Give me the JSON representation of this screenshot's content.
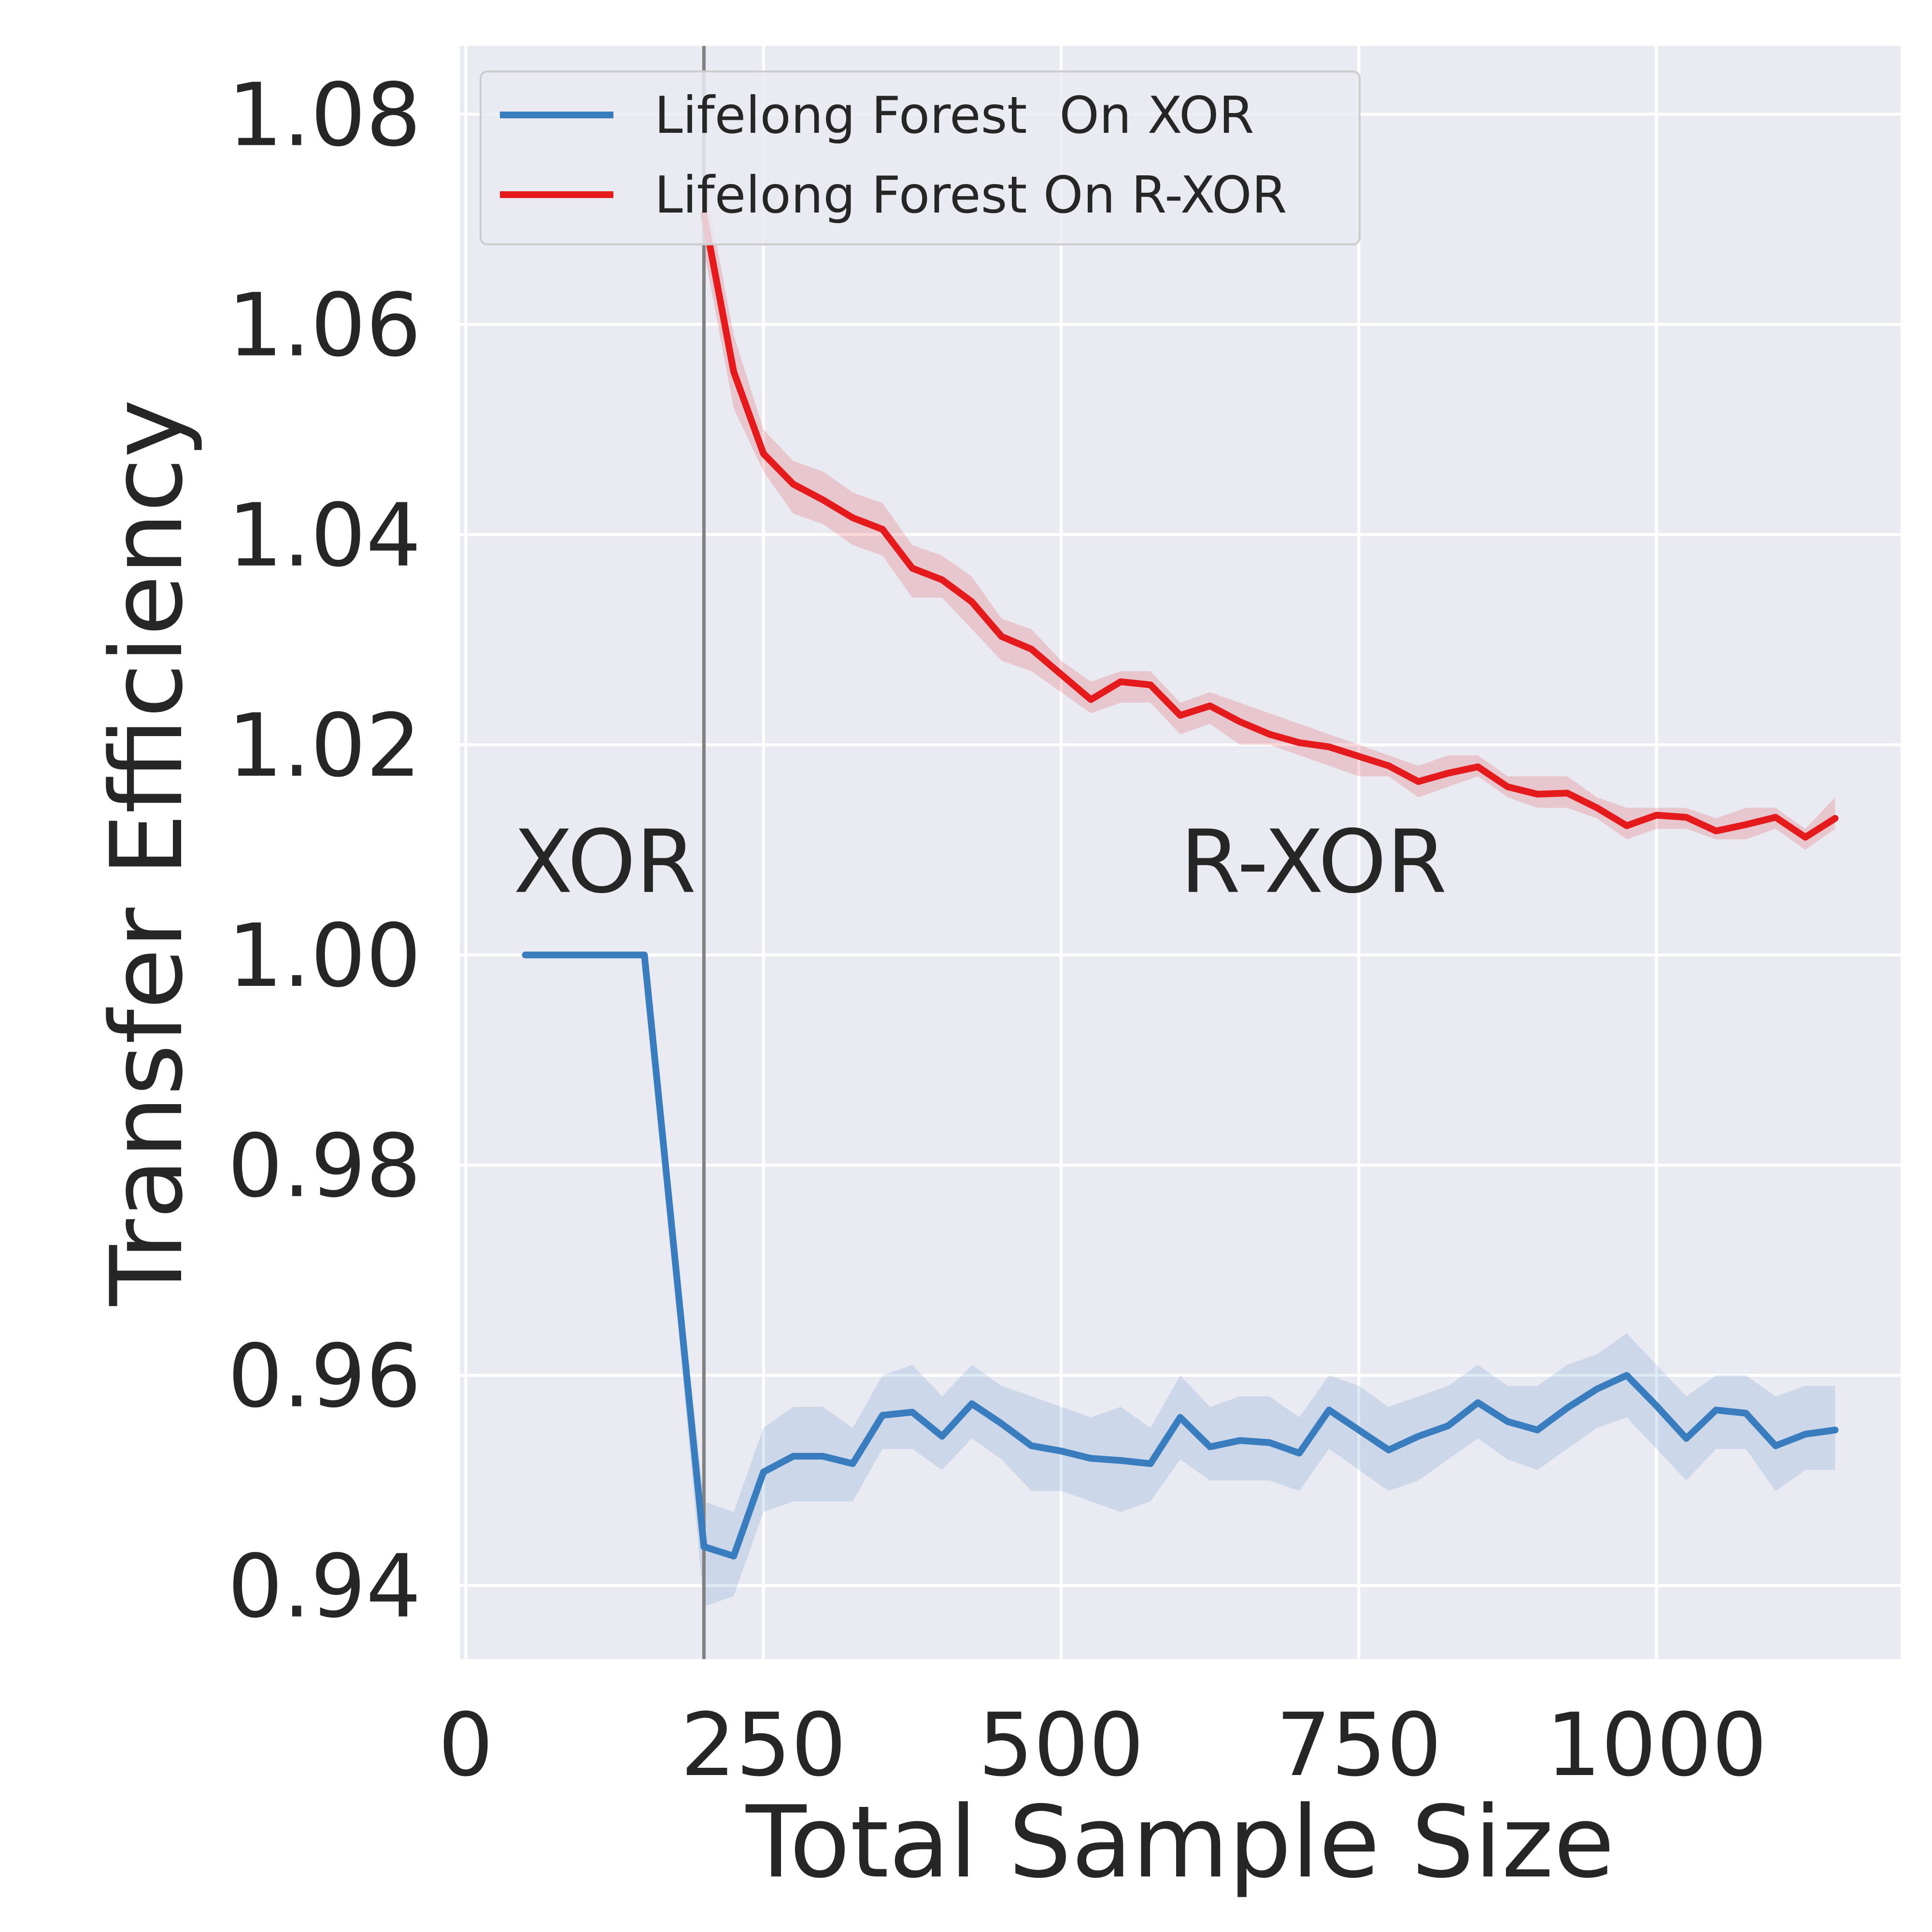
{
  "chart_data": {
    "type": "line",
    "title": "",
    "xlabel": "Total Sample Size",
    "ylabel": "Transfer Efficiency",
    "xlim": [
      -5,
      1205
    ],
    "ylim": [
      0.933,
      1.0865
    ],
    "xticks": [
      0,
      250,
      500,
      750,
      1000
    ],
    "xtick_labels": [
      "0",
      "250",
      "500",
      "750",
      "1000"
    ],
    "yticks": [
      0.94,
      0.96,
      0.98,
      1.0,
      1.02,
      1.04,
      1.06,
      1.08
    ],
    "ytick_labels": [
      "0.94",
      "0.96",
      "0.98",
      "1.00",
      "1.02",
      "1.04",
      "1.06",
      "1.08"
    ],
    "grid": true,
    "legend_position": "top-left",
    "background_color": "#EAEAF2",
    "vertical_line": {
      "x": 200,
      "color": "#808080"
    },
    "annotations": [
      {
        "text": "XOR",
        "x": 40,
        "y": 1.006
      },
      {
        "text": "R-XOR",
        "x": 600,
        "y": 1.006
      }
    ],
    "series": [
      {
        "name": "Lifelong Forest  On XOR",
        "color": "#3A7DBF",
        "x": [
          50,
          75,
          100,
          125,
          150,
          200,
          225,
          250,
          275,
          300,
          325,
          350,
          375,
          400,
          425,
          450,
          475,
          500,
          525,
          550,
          575,
          600,
          625,
          650,
          675,
          700,
          725,
          750,
          775,
          800,
          825,
          850,
          875,
          900,
          925,
          950,
          975,
          1000,
          1025,
          1050,
          1075,
          1100,
          1125,
          1150
        ],
        "y": [
          1.0,
          1.0,
          1.0,
          1.0,
          1.0,
          0.9437,
          0.9428,
          0.9508,
          0.9523,
          0.9523,
          0.9516,
          0.9562,
          0.9565,
          0.9542,
          0.9573,
          0.9554,
          0.9533,
          0.9528,
          0.9521,
          0.9519,
          0.9516,
          0.956,
          0.9532,
          0.9538,
          0.9536,
          0.9526,
          0.9567,
          0.9548,
          0.9529,
          0.9542,
          0.9552,
          0.9574,
          0.9556,
          0.9548,
          0.9569,
          0.9587,
          0.96,
          0.9571,
          0.954,
          0.9567,
          0.9564,
          0.9533,
          0.9544,
          0.9548
        ],
        "lower": [
          1.0,
          1.0,
          1.0,
          1.0,
          1.0,
          0.938,
          0.939,
          0.947,
          0.948,
          0.948,
          0.948,
          0.953,
          0.953,
          0.951,
          0.954,
          0.952,
          0.949,
          0.949,
          0.948,
          0.947,
          0.948,
          0.952,
          0.95,
          0.95,
          0.95,
          0.949,
          0.953,
          0.951,
          0.949,
          0.95,
          0.952,
          0.954,
          0.952,
          0.951,
          0.953,
          0.955,
          0.956,
          0.953,
          0.95,
          0.953,
          0.953,
          0.949,
          0.951,
          0.951
        ],
        "upper": [
          1.0,
          1.0,
          1.0,
          1.0,
          1.0,
          0.948,
          0.947,
          0.955,
          0.957,
          0.957,
          0.955,
          0.96,
          0.961,
          0.958,
          0.961,
          0.959,
          0.958,
          0.957,
          0.956,
          0.957,
          0.955,
          0.96,
          0.957,
          0.958,
          0.958,
          0.956,
          0.96,
          0.959,
          0.957,
          0.958,
          0.959,
          0.961,
          0.959,
          0.959,
          0.961,
          0.962,
          0.964,
          0.961,
          0.958,
          0.96,
          0.96,
          0.958,
          0.959,
          0.959
        ]
      },
      {
        "name": "Lifelong Forest On R-XOR",
        "color": "#E41A1C",
        "x": [
          200,
          225,
          250,
          275,
          300,
          325,
          350,
          375,
          400,
          425,
          450,
          475,
          500,
          525,
          550,
          575,
          600,
          625,
          650,
          675,
          700,
          725,
          750,
          775,
          800,
          825,
          850,
          875,
          900,
          925,
          950,
          975,
          1000,
          1025,
          1050,
          1075,
          1100,
          1125,
          1150
        ],
        "y": [
          1.0705,
          1.0555,
          1.0477,
          1.0448,
          1.0433,
          1.0416,
          1.0405,
          1.0368,
          1.0357,
          1.0336,
          1.0303,
          1.0291,
          1.0267,
          1.0243,
          1.026,
          1.0257,
          1.0228,
          1.0237,
          1.0222,
          1.021,
          1.0202,
          1.0198,
          1.0189,
          1.018,
          1.0165,
          1.0173,
          1.0179,
          1.016,
          1.0153,
          1.0154,
          1.014,
          1.0123,
          1.0133,
          1.0131,
          1.0118,
          1.0124,
          1.0131,
          1.0112,
          1.013
        ],
        "lower": [
          1.067,
          1.052,
          1.046,
          1.042,
          1.041,
          1.039,
          1.038,
          1.034,
          1.034,
          1.031,
          1.028,
          1.027,
          1.025,
          1.023,
          1.024,
          1.024,
          1.021,
          1.022,
          1.02,
          1.02,
          1.019,
          1.018,
          1.017,
          1.017,
          1.015,
          1.016,
          1.017,
          1.015,
          1.014,
          1.014,
          1.013,
          1.011,
          1.012,
          1.012,
          1.011,
          1.011,
          1.012,
          1.01,
          1.012
        ],
        "upper": [
          1.074,
          1.059,
          1.05,
          1.047,
          1.046,
          1.044,
          1.043,
          1.039,
          1.038,
          1.036,
          1.032,
          1.031,
          1.028,
          1.026,
          1.027,
          1.027,
          1.024,
          1.025,
          1.024,
          1.023,
          1.022,
          1.021,
          1.02,
          1.019,
          1.018,
          1.019,
          1.019,
          1.017,
          1.017,
          1.017,
          1.015,
          1.014,
          1.014,
          1.014,
          1.013,
          1.014,
          1.014,
          1.012,
          1.015
        ]
      }
    ]
  }
}
